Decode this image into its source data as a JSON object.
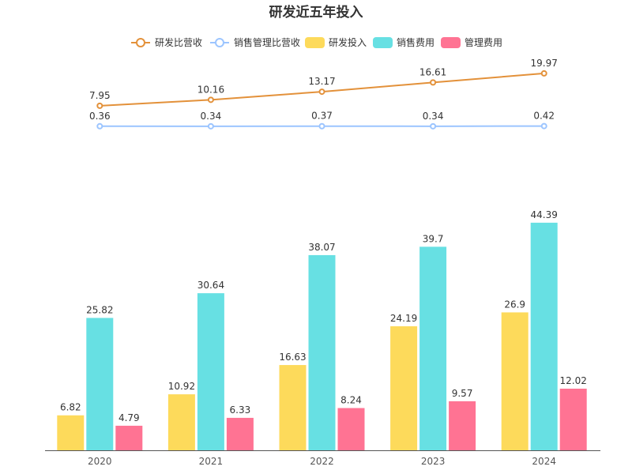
{
  "chart_data": {
    "type": "bar",
    "title": "研发近五年投入",
    "categories": [
      "2020",
      "2021",
      "2022",
      "2023",
      "2024"
    ],
    "legend_position": "top-center",
    "grid": false,
    "bar_series": [
      {
        "name": "研发投入",
        "color": "#FDDA5B",
        "values": [
          6.82,
          10.92,
          16.63,
          24.19,
          26.9
        ]
      },
      {
        "name": "销售费用",
        "color": "#67E0E3",
        "values": [
          25.82,
          30.64,
          38.07,
          39.7,
          44.39
        ]
      },
      {
        "name": "管理费用",
        "color": "#FF7393",
        "values": [
          4.79,
          6.33,
          8.24,
          9.57,
          12.02
        ]
      }
    ],
    "line_series": [
      {
        "name": "研发比营收",
        "color": "#E3913A",
        "values": [
          7.95,
          10.16,
          13.17,
          16.61,
          19.97
        ]
      },
      {
        "name": "销售管理比营收",
        "color": "#9CC5FF",
        "values": [
          0.36,
          0.34,
          0.37,
          0.34,
          0.42
        ]
      }
    ],
    "xlabel": "",
    "ylabel": ""
  }
}
